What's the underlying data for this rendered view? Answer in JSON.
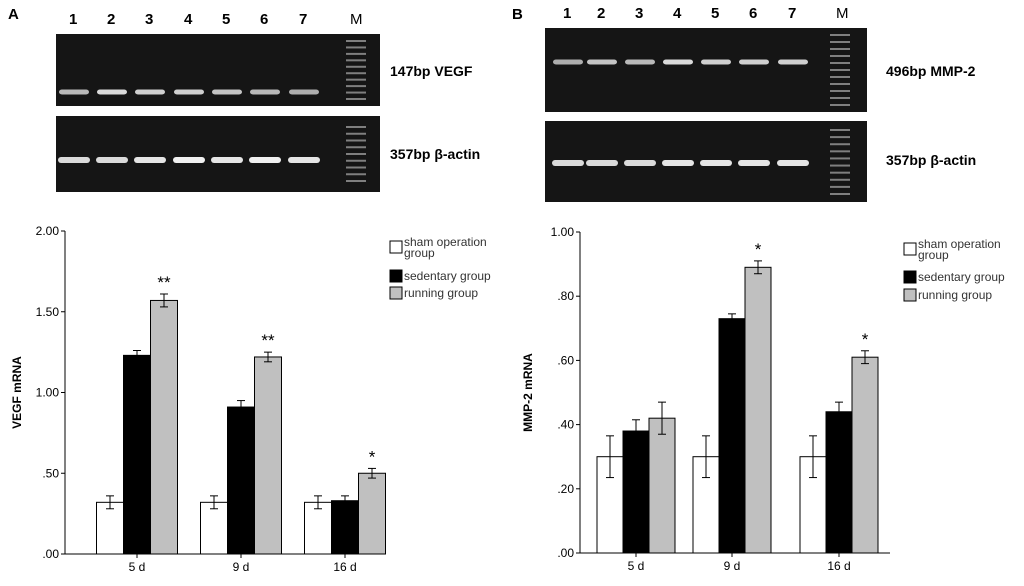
{
  "panels": {
    "A": {
      "letter": "A",
      "gel_top": {
        "lanes": [
          "1",
          "2",
          "3",
          "4",
          "5",
          "6",
          "7"
        ],
        "marker": "M",
        "label": "147bp VEGF",
        "band_strength": [
          0.75,
          0.9,
          0.85,
          0.85,
          0.8,
          0.75,
          0.7
        ]
      },
      "gel_bottom": {
        "label": "357bp β-actin",
        "band_strength": [
          0.9,
          0.9,
          0.95,
          1.0,
          0.95,
          1.0,
          0.95
        ]
      }
    },
    "B": {
      "letter": "B",
      "gel_top": {
        "lanes": [
          "1",
          "2",
          "3",
          "4",
          "5",
          "6",
          "7"
        ],
        "marker": "M",
        "label": "496bp MMP-2",
        "band_strength": [
          0.7,
          0.8,
          0.75,
          0.9,
          0.85,
          0.85,
          0.85
        ]
      },
      "gel_bottom": {
        "label": "357bp β-actin",
        "band_strength": [
          0.9,
          0.9,
          0.9,
          0.95,
          0.95,
          0.95,
          0.95
        ]
      }
    }
  },
  "colors": {
    "sham": "#ffffff",
    "sedentary": "#000000",
    "running": "#c0c0c0",
    "gel": "#151515",
    "band": "#f0f0f0"
  },
  "chart_data": [
    {
      "type": "bar",
      "ylabel": "VEGF mRNA",
      "categories": [
        "5 d",
        "9 d",
        "16 d"
      ],
      "yticks": [
        ".00",
        ".50",
        "1.00",
        "1.50",
        "2.00"
      ],
      "ylim": [
        0,
        2.0
      ],
      "legend_position": "top-right",
      "series": [
        {
          "name": "sham operation group",
          "values": [
            0.32,
            0.32,
            0.32
          ],
          "errors": [
            0.04,
            0.04,
            0.04
          ]
        },
        {
          "name": "sedentary group",
          "values": [
            1.23,
            0.91,
            0.33
          ],
          "errors": [
            0.03,
            0.04,
            0.03
          ]
        },
        {
          "name": "running group",
          "values": [
            1.57,
            1.22,
            0.5
          ],
          "errors": [
            0.04,
            0.03,
            0.03
          ]
        }
      ],
      "annotations": [
        {
          "series": 2,
          "category": 0,
          "text": "**"
        },
        {
          "series": 2,
          "category": 1,
          "text": "**"
        },
        {
          "series": 2,
          "category": 2,
          "text": "*"
        }
      ]
    },
    {
      "type": "bar",
      "ylabel": "MMP-2 mRNA",
      "categories": [
        "5 d",
        "9 d",
        "16 d"
      ],
      "yticks": [
        ".00",
        ".20",
        ".40",
        ".60",
        ".80",
        "1.00"
      ],
      "ylim": [
        0,
        1.0
      ],
      "legend_position": "top-right",
      "series": [
        {
          "name": "sham operation group",
          "values": [
            0.3,
            0.3,
            0.3
          ],
          "errors": [
            0.065,
            0.065,
            0.065
          ]
        },
        {
          "name": "sedentary group",
          "values": [
            0.38,
            0.73,
            0.44
          ],
          "errors": [
            0.035,
            0.015,
            0.03
          ]
        },
        {
          "name": "running group",
          "values": [
            0.42,
            0.89,
            0.61
          ],
          "errors": [
            0.05,
            0.02,
            0.02
          ]
        }
      ],
      "annotations": [
        {
          "series": 2,
          "category": 1,
          "text": "*"
        },
        {
          "series": 2,
          "category": 2,
          "text": "*"
        }
      ]
    }
  ]
}
